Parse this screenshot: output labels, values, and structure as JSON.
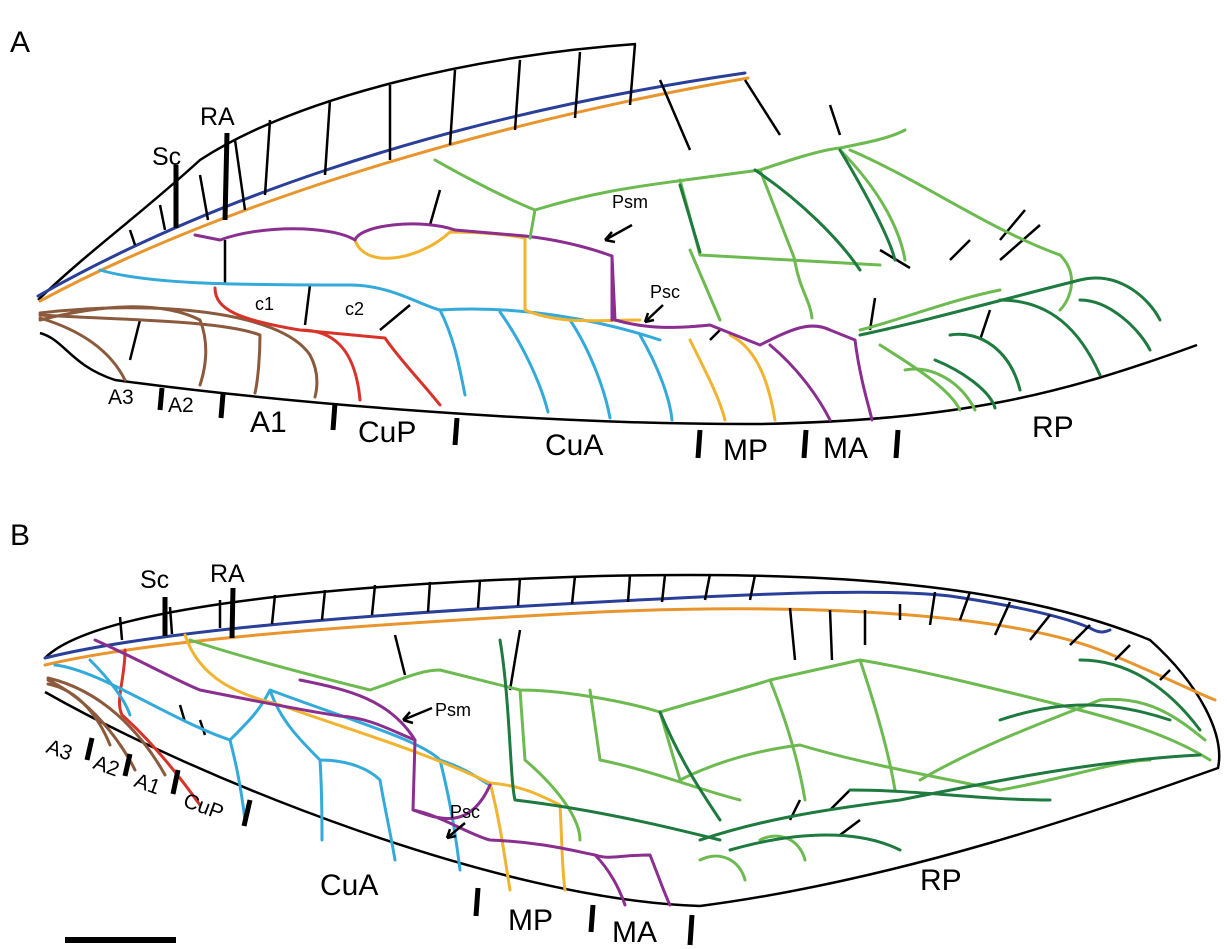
{
  "panels": [
    {
      "letter": "A",
      "vein_labels": {
        "sc": "Sc",
        "ra": "RA",
        "psm": "Psm",
        "psc": "Psc",
        "a3": "A3",
        "a2": "A2",
        "a1": "A1",
        "cup": "CuP",
        "cua": "CuA",
        "mp": "MP",
        "ma": "MA",
        "rp": "RP"
      },
      "cell_labels": {
        "c1": "c1",
        "c2": "c2"
      }
    },
    {
      "letter": "B",
      "vein_labels": {
        "sc": "Sc",
        "ra": "RA",
        "psm": "Psm",
        "psc": "Psc",
        "a3": "A3",
        "a2": "A2",
        "a1": "A1",
        "cup": "CuP",
        "cua": "CuA",
        "mp": "MP",
        "ma": "MA",
        "rp": "RP"
      }
    }
  ]
}
